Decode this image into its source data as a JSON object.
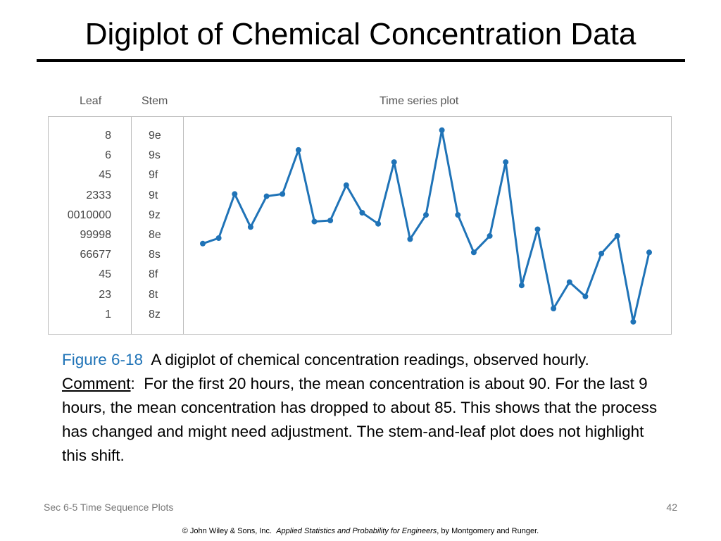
{
  "slide": {
    "title": "Digiplot of Chemical Concentration Data",
    "footer_left": "Sec 6-5 Time Sequence Plots",
    "page_number": "42",
    "copyright_prefix": "© John Wiley & Sons, Inc.",
    "copyright_book": "Applied Statistics and Probability for Engineers",
    "copyright_suffix": ", by Montgomery and Runger."
  },
  "caption": {
    "figure_label": "Figure 6-18",
    "lead": "A digiplot of chemical concentration readings, observed hourly.",
    "comment_label": "Comment",
    "body": "For the first 20 hours, the mean concentration is about 90.  For the last 9 hours, the mean concentration has dropped to about 85.  This shows that the process has changed and might need adjustment.  The stem-and-leaf plot does not highlight this shift."
  },
  "colors": {
    "series": "#1f73b7",
    "frame": "#bdbdbd",
    "caption_figure": "#1f73b7"
  },
  "chart_data": {
    "type": "line",
    "headers": {
      "leaf": "Leaf",
      "stem": "Stem",
      "time_series": "Time series plot"
    },
    "stem_and_leaf": [
      {
        "leaf": "8",
        "stem": "9e"
      },
      {
        "leaf": "6",
        "stem": "9s"
      },
      {
        "leaf": "45",
        "stem": "9f"
      },
      {
        "leaf": "2333",
        "stem": "9t"
      },
      {
        "leaf": "0010000",
        "stem": "9z"
      },
      {
        "leaf": "99998",
        "stem": "8e"
      },
      {
        "leaf": "66677",
        "stem": "8s"
      },
      {
        "leaf": "45",
        "stem": "8f"
      },
      {
        "leaf": "23",
        "stem": "8t"
      },
      {
        "leaf": "1",
        "stem": "8z"
      }
    ],
    "series": [
      {
        "values": [
          88.5,
          89.0,
          93.0,
          90.0,
          92.8,
          93.0,
          97.0,
          90.5,
          90.6,
          93.8,
          91.3,
          90.3,
          95.9,
          88.9,
          91.1,
          98.8,
          91.1,
          87.7,
          89.2,
          95.9,
          84.7,
          89.8,
          82.6,
          85.0,
          83.7,
          87.6,
          89.2,
          81.4,
          87.7
        ]
      }
    ],
    "ylim": [
      80.3,
      100.0
    ],
    "grid": false
  }
}
